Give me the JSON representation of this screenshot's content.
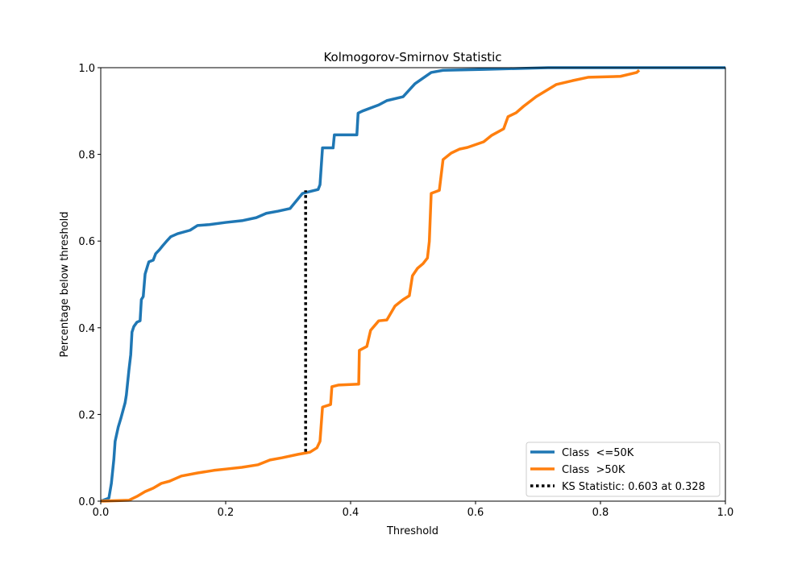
{
  "chart_data": {
    "type": "line",
    "title": "Kolmogorov-Smirnov Statistic",
    "xlabel": "Threshold",
    "ylabel": "Percentage below threshold",
    "xlim": [
      0,
      1
    ],
    "ylim": [
      0,
      1
    ],
    "xticks": [
      "0.0",
      "0.2",
      "0.4",
      "0.6",
      "0.8",
      "1.0"
    ],
    "yticks": [
      "0.0",
      "0.2",
      "0.4",
      "0.6",
      "0.8",
      "1.0"
    ],
    "grid": false,
    "legend_position": "bottom-right",
    "series": [
      {
        "name": "Class  <=50K",
        "color": "#1f77b4",
        "x": [
          0,
          0.013,
          0.017,
          0.021,
          0.023,
          0.028,
          0.032,
          0.039,
          0.041,
          0.045,
          0.048,
          0.05,
          0.053,
          0.058,
          0.063,
          0.065,
          0.068,
          0.071,
          0.075,
          0.077,
          0.084,
          0.088,
          0.094,
          0.099,
          0.105,
          0.112,
          0.123,
          0.143,
          0.155,
          0.174,
          0.2,
          0.226,
          0.249,
          0.265,
          0.284,
          0.303,
          0.323,
          0.348,
          0.351,
          0.355,
          0.372,
          0.374,
          0.41,
          0.412,
          0.419,
          0.445,
          0.458,
          0.484,
          0.503,
          0.529,
          0.548,
          0.613,
          0.716,
          1.0
        ],
        "y": [
          0,
          0.007,
          0.041,
          0.097,
          0.138,
          0.171,
          0.19,
          0.227,
          0.245,
          0.301,
          0.338,
          0.39,
          0.403,
          0.413,
          0.416,
          0.465,
          0.472,
          0.524,
          0.543,
          0.552,
          0.556,
          0.571,
          0.58,
          0.589,
          0.599,
          0.61,
          0.617,
          0.625,
          0.636,
          0.638,
          0.643,
          0.647,
          0.654,
          0.664,
          0.669,
          0.675,
          0.71,
          0.719,
          0.73,
          0.815,
          0.815,
          0.845,
          0.845,
          0.895,
          0.9,
          0.914,
          0.924,
          0.933,
          0.963,
          0.989,
          0.994,
          0.996,
          1.0,
          1.0
        ]
      },
      {
        "name": "Class  >50K",
        "color": "#ff7f0e",
        "x": [
          0,
          0.045,
          0.058,
          0.071,
          0.084,
          0.097,
          0.11,
          0.129,
          0.155,
          0.181,
          0.2,
          0.226,
          0.252,
          0.271,
          0.29,
          0.316,
          0.335,
          0.346,
          0.351,
          0.355,
          0.368,
          0.37,
          0.381,
          0.413,
          0.414,
          0.426,
          0.432,
          0.445,
          0.458,
          0.471,
          0.477,
          0.484,
          0.494,
          0.499,
          0.507,
          0.516,
          0.523,
          0.526,
          0.529,
          0.542,
          0.548,
          0.561,
          0.574,
          0.587,
          0.613,
          0.626,
          0.645,
          0.652,
          0.665,
          0.677,
          0.697,
          0.729,
          0.755,
          0.781,
          0.832,
          0.858,
          0.862
        ],
        "y": [
          0,
          0.002,
          0.011,
          0.022,
          0.03,
          0.041,
          0.046,
          0.058,
          0.065,
          0.071,
          0.074,
          0.078,
          0.084,
          0.095,
          0.1,
          0.108,
          0.113,
          0.123,
          0.138,
          0.217,
          0.223,
          0.264,
          0.268,
          0.27,
          0.348,
          0.357,
          0.394,
          0.416,
          0.418,
          0.45,
          0.457,
          0.465,
          0.474,
          0.52,
          0.537,
          0.548,
          0.561,
          0.599,
          0.71,
          0.717,
          0.788,
          0.803,
          0.812,
          0.816,
          0.829,
          0.844,
          0.859,
          0.887,
          0.896,
          0.911,
          0.933,
          0.961,
          0.97,
          0.978,
          0.98,
          0.989,
          0.994
        ]
      }
    ],
    "ks_line": {
      "name": "KS Statistic: 0.603 at 0.328",
      "x": 0.328,
      "y_low": 0.114,
      "y_high": 0.717,
      "color": "#000000"
    }
  }
}
